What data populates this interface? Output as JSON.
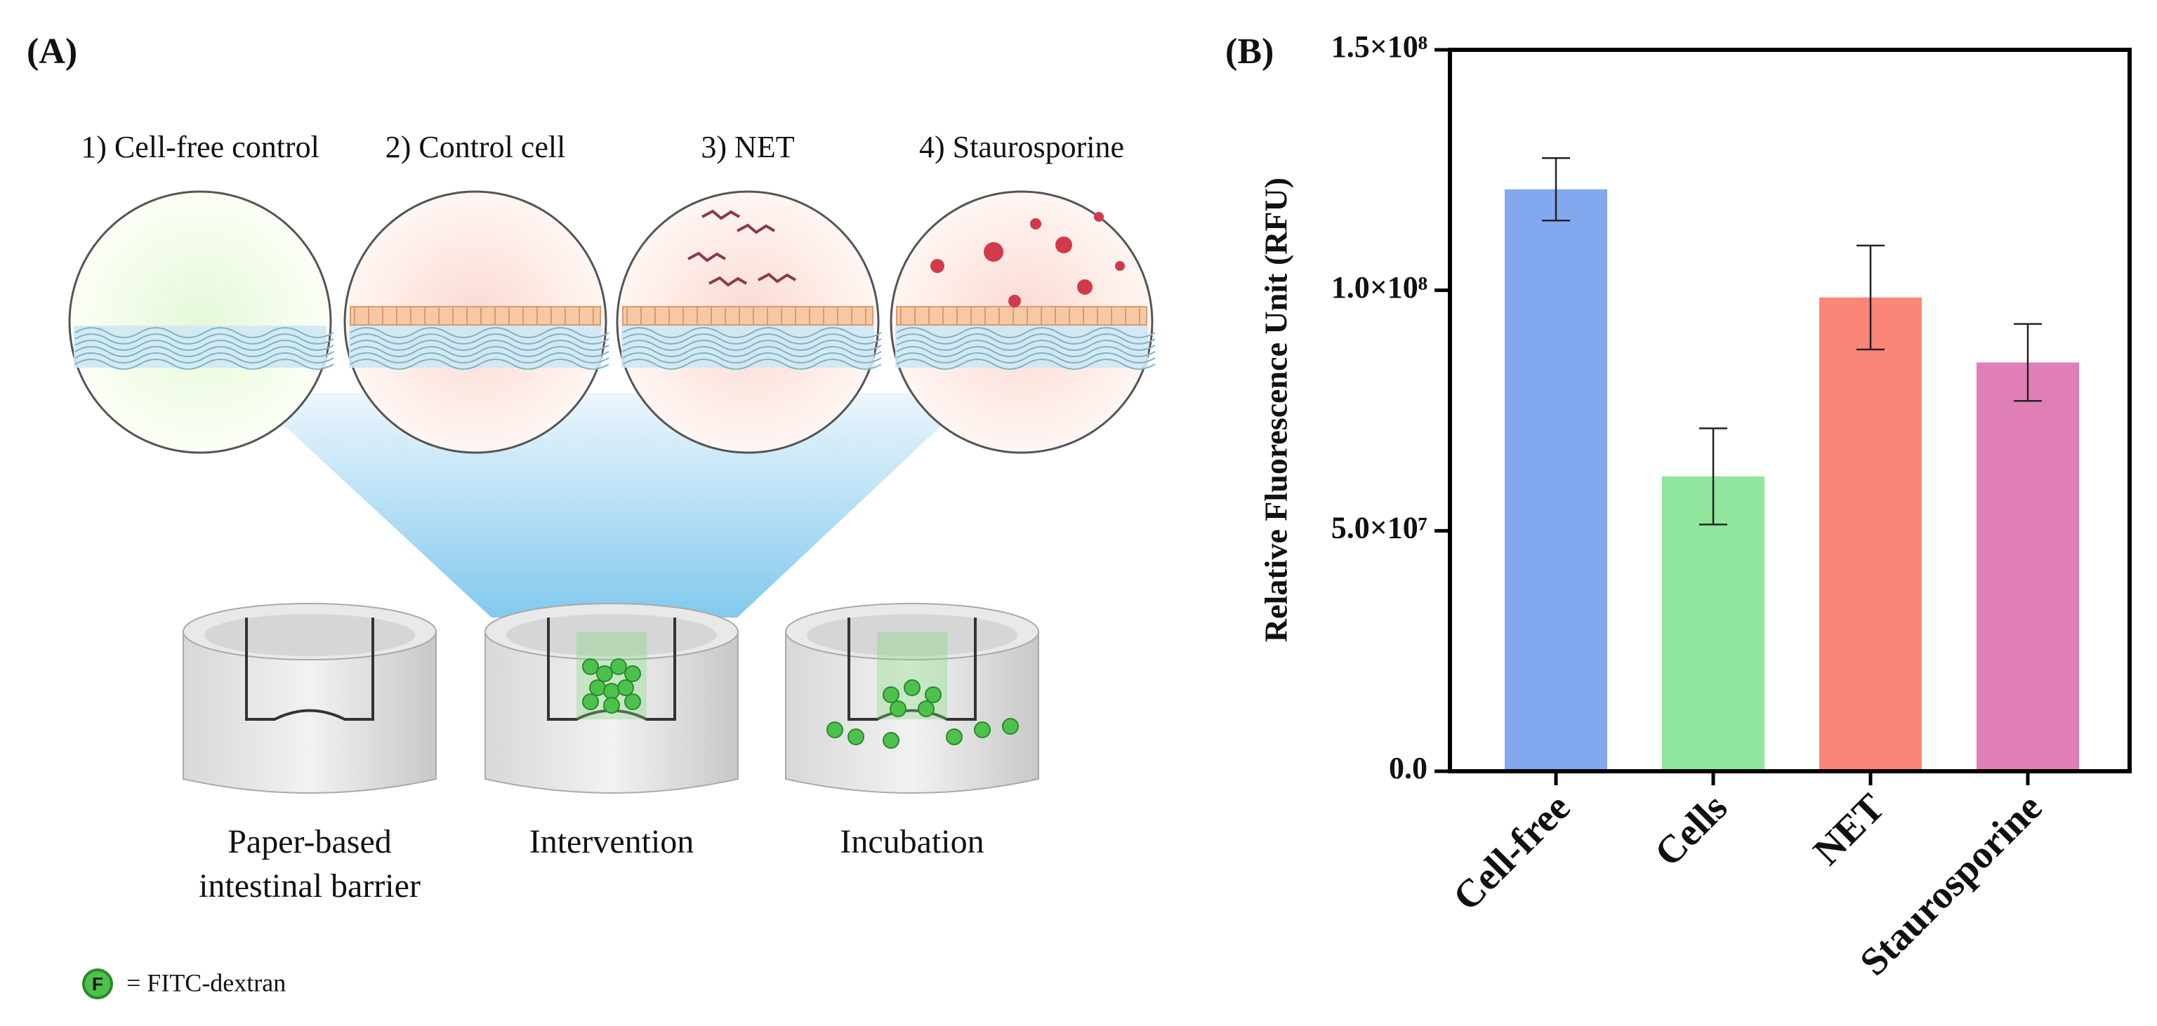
{
  "panel_a": {
    "label": "(A)",
    "conditions": [
      "1) Cell-free control",
      "2) Control cell",
      "3) NET",
      "4) Staurosporine"
    ],
    "steps": [
      [
        "Paper-based",
        "intestinal barrier"
      ],
      [
        "Intervention"
      ],
      [
        "Incubation"
      ]
    ],
    "legend_icon": "F",
    "legend": "= FITC-dextran"
  },
  "chart_data": {
    "type": "bar",
    "panel_label": "(B)",
    "ylabel": "Relative Fluorescence Unit (RFU)",
    "categories": [
      "Cell-free",
      "Cells",
      "NET",
      "Staurosporine"
    ],
    "values": [
      121000000,
      61300000,
      98500000,
      85000000
    ],
    "errors": [
      6500000,
      10000000,
      10800000,
      8000000
    ],
    "colors": [
      "#82a8f0",
      "#90e69c",
      "#fb8577",
      "#e07fb6"
    ],
    "ylim": [
      0,
      150000000
    ],
    "yticks": [
      {
        "value": 0,
        "label": "0.0"
      },
      {
        "value": 50000000,
        "label": "5.0×10⁷"
      },
      {
        "value": 100000000,
        "label": "1.0×10⁸"
      },
      {
        "value": 150000000,
        "label": "1.5×10⁸"
      }
    ],
    "grid": false
  }
}
